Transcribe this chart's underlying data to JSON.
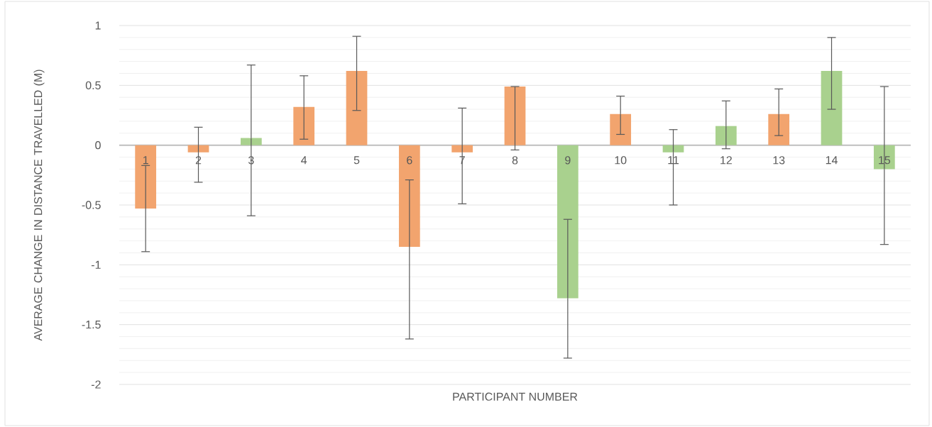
{
  "chart_data": {
    "type": "bar",
    "xlabel": "PARTICIPANT NUMBER",
    "ylabel": "AVERAGE  CHANGE  IN DISTANCE TRAVELLED (M)",
    "categories": [
      "1",
      "2",
      "3",
      "4",
      "5",
      "6",
      "7",
      "8",
      "9",
      "10",
      "11",
      "12",
      "13",
      "14",
      "15"
    ],
    "values": [
      -0.53,
      -0.06,
      0.06,
      0.32,
      0.62,
      -0.85,
      -0.06,
      0.49,
      -1.28,
      0.26,
      -0.06,
      0.16,
      0.26,
      0.62,
      -0.2
    ],
    "colors": [
      "#f2a46e",
      "#f2a46e",
      "#a9d18e",
      "#f2a46e",
      "#f2a46e",
      "#f2a46e",
      "#f2a46e",
      "#f2a46e",
      "#a9d18e",
      "#f2a46e",
      "#a9d18e",
      "#a9d18e",
      "#f2a46e",
      "#a9d18e",
      "#a9d18e"
    ],
    "errors": [
      [
        -0.89,
        -0.17
      ],
      [
        -0.31,
        0.15
      ],
      [
        -0.59,
        0.67
      ],
      [
        0.05,
        0.58
      ],
      [
        0.29,
        0.91
      ],
      [
        -1.62,
        -0.29
      ],
      [
        -0.49,
        0.31
      ],
      [
        -0.04,
        0.49
      ],
      [
        -1.78,
        -0.62
      ],
      [
        0.09,
        0.41
      ],
      [
        -0.5,
        0.13
      ],
      [
        -0.03,
        0.37
      ],
      [
        0.08,
        0.47
      ],
      [
        0.3,
        0.9
      ],
      [
        -0.83,
        0.49
      ]
    ],
    "ylim": [
      -2,
      1
    ],
    "yticks": [
      -2,
      -1.5,
      -1,
      -0.5,
      0,
      0.5,
      1
    ],
    "grid": "y"
  }
}
